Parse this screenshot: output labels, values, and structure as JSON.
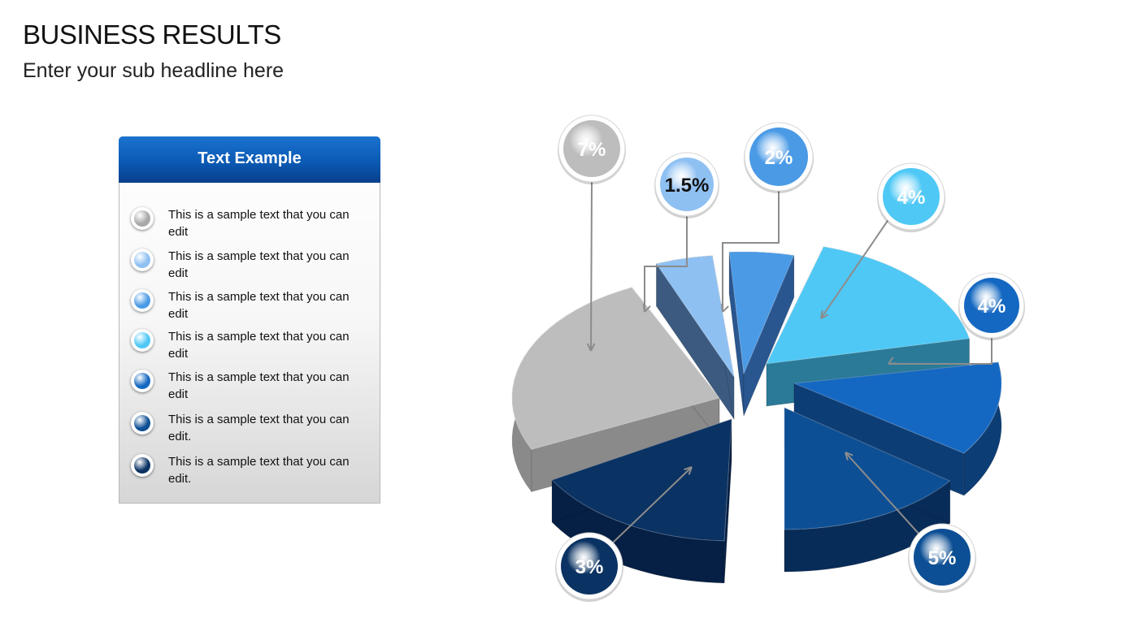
{
  "slide": {
    "title": "BUSINESS RESULTS",
    "subtitle": "Enter your sub headline here"
  },
  "legend": {
    "header": "Text Example",
    "items": [
      {
        "text": "This is a sample text that you can edit",
        "color": "#a8a8a8"
      },
      {
        "text": "This is a sample text that you can edit",
        "color": "#8ec0f2"
      },
      {
        "text": "This is a sample text that you can edit",
        "color": "#4a9ae6"
      },
      {
        "text": "This is a sample text that you can edit",
        "color": "#4fc8f5"
      },
      {
        "text": "This is a sample text that you can edit",
        "color": "#1568c2"
      },
      {
        "text": "This is a sample text that you can edit.",
        "color": "#0d4f94"
      },
      {
        "text": "This is a sample text that you can edit.",
        "color": "#0a3262"
      }
    ]
  },
  "chart_data": {
    "type": "pie",
    "style": "exploded 3d",
    "slices": [
      {
        "label": "7%",
        "value": 7,
        "color": "#bdbdbd"
      },
      {
        "label": "1.5%",
        "value": 1.5,
        "color": "#8ec0f2"
      },
      {
        "label": "2%",
        "value": 2,
        "color": "#4a9ae6"
      },
      {
        "label": "4%",
        "value": 4,
        "color": "#4fc8f5"
      },
      {
        "label": "4%",
        "value": 4,
        "color": "#1568c2"
      },
      {
        "label": "5%",
        "value": 5,
        "color": "#0d4f94"
      },
      {
        "label": "3%",
        "value": 3,
        "color": "#0a3262"
      }
    ]
  }
}
